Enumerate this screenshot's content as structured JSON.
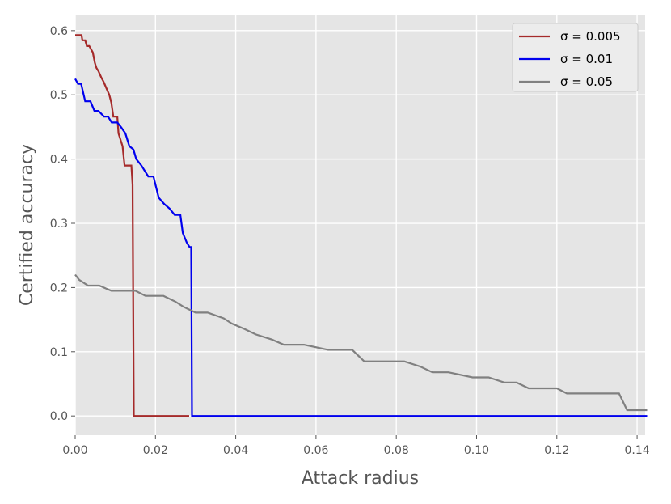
{
  "chart_data": {
    "type": "line",
    "xlabel": "Attack radius",
    "ylabel": "Certified accuracy",
    "xlim": [
      0.0,
      0.142
    ],
    "ylim": [
      -0.03,
      0.625
    ],
    "xticks": [
      "0.00",
      "0.02",
      "0.04",
      "0.06",
      "0.08",
      "0.10",
      "0.12",
      "0.14"
    ],
    "xtick_values": [
      0.0,
      0.02,
      0.04,
      0.06,
      0.08,
      0.1,
      0.12,
      0.14
    ],
    "yticks": [
      "0.0",
      "0.1",
      "0.2",
      "0.3",
      "0.4",
      "0.5",
      "0.6"
    ],
    "ytick_values": [
      0.0,
      0.1,
      0.2,
      0.3,
      0.4,
      0.5,
      0.6
    ],
    "grid": true,
    "background": "#e5e5e5",
    "legend_position": "top-right",
    "series": [
      {
        "name": "σ = 0.005",
        "color": "#a52a2a",
        "x": [
          0.0,
          0.0016,
          0.0018,
          0.0025,
          0.0029,
          0.0035,
          0.0044,
          0.0049,
          0.0053,
          0.0058,
          0.0065,
          0.0071,
          0.0078,
          0.0085,
          0.009,
          0.0095,
          0.0105,
          0.0108,
          0.0118,
          0.0123,
          0.0133,
          0.014,
          0.0143,
          0.0146,
          0.0148,
          0.02,
          0.0284
        ],
        "y": [
          0.593,
          0.593,
          0.585,
          0.585,
          0.576,
          0.576,
          0.566,
          0.55,
          0.542,
          0.537,
          0.527,
          0.52,
          0.51,
          0.5,
          0.488,
          0.466,
          0.466,
          0.44,
          0.42,
          0.39,
          0.39,
          0.39,
          0.36,
          0.0,
          0.0,
          0.0,
          0.0
        ]
      },
      {
        "name": "σ = 0.01",
        "color": "#0000ee",
        "x": [
          0.0,
          0.0007,
          0.0015,
          0.0025,
          0.0038,
          0.0048,
          0.0058,
          0.0072,
          0.0082,
          0.0091,
          0.0105,
          0.0115,
          0.0125,
          0.0135,
          0.0145,
          0.0152,
          0.0165,
          0.0182,
          0.0195,
          0.0208,
          0.0222,
          0.0235,
          0.0248,
          0.0262,
          0.0268,
          0.0278,
          0.0285,
          0.0289,
          0.0291,
          0.1425
        ],
        "y": [
          0.525,
          0.517,
          0.517,
          0.49,
          0.49,
          0.475,
          0.475,
          0.466,
          0.466,
          0.457,
          0.457,
          0.449,
          0.44,
          0.42,
          0.415,
          0.4,
          0.39,
          0.373,
          0.373,
          0.34,
          0.33,
          0.323,
          0.313,
          0.313,
          0.285,
          0.27,
          0.263,
          0.263,
          0.0,
          0.0
        ]
      },
      {
        "name": "σ = 0.05",
        "color": "#808080",
        "x": [
          0.0,
          0.001,
          0.0032,
          0.006,
          0.009,
          0.012,
          0.015,
          0.0175,
          0.019,
          0.022,
          0.025,
          0.027,
          0.03,
          0.033,
          0.037,
          0.039,
          0.042,
          0.045,
          0.049,
          0.052,
          0.057,
          0.063,
          0.069,
          0.072,
          0.077,
          0.082,
          0.086,
          0.089,
          0.093,
          0.099,
          0.103,
          0.107,
          0.11,
          0.113,
          0.117,
          0.12,
          0.1225,
          0.127,
          0.131,
          0.1355,
          0.1375,
          0.141,
          0.1425
        ],
        "y": [
          0.22,
          0.212,
          0.203,
          0.203,
          0.195,
          0.195,
          0.195,
          0.187,
          0.187,
          0.187,
          0.178,
          0.17,
          0.161,
          0.161,
          0.152,
          0.144,
          0.136,
          0.127,
          0.119,
          0.111,
          0.111,
          0.103,
          0.103,
          0.085,
          0.085,
          0.085,
          0.077,
          0.068,
          0.068,
          0.06,
          0.06,
          0.052,
          0.052,
          0.043,
          0.043,
          0.043,
          0.035,
          0.035,
          0.035,
          0.035,
          0.009,
          0.009,
          0.009
        ]
      }
    ]
  }
}
